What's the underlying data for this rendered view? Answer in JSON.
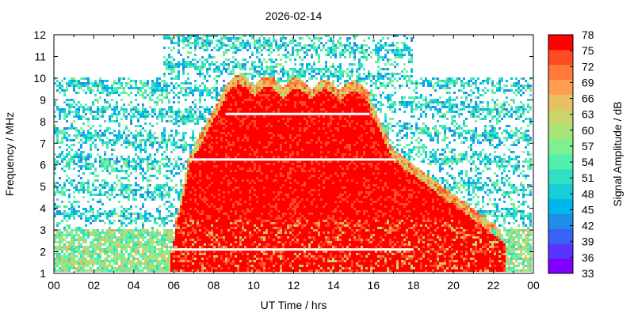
{
  "chart_data": {
    "type": "heatmap",
    "title": "2026-02-14",
    "xlabel": "UT Time / hrs",
    "ylabel": "Frequency / MHz",
    "colorbar_label": "Signal Amplitude / dB",
    "xlim": [
      0,
      24
    ],
    "ylim": [
      1,
      12
    ],
    "x_ticks": [
      "00",
      "02",
      "04",
      "06",
      "08",
      "10",
      "12",
      "14",
      "16",
      "18",
      "20",
      "22",
      "00"
    ],
    "y_ticks": [
      "1",
      "2",
      "3",
      "4",
      "5",
      "6",
      "7",
      "8",
      "9",
      "10",
      "11",
      "12"
    ],
    "colorbar_ticks": [
      "33",
      "36",
      "39",
      "42",
      "45",
      "48",
      "51",
      "54",
      "57",
      "60",
      "63",
      "66",
      "69",
      "72",
      "75",
      "78"
    ],
    "colorbar_range": [
      33,
      78
    ],
    "colormap": [
      "#7f00ff",
      "#5a33fd",
      "#3a63f5",
      "#1f8ee9",
      "#00b5eb",
      "#19cdd6",
      "#33dfc3",
      "#52f0ad",
      "#7ff090",
      "#a7e47a",
      "#c9d46b",
      "#e8bf62",
      "#ff9e50",
      "#ff7a3a",
      "#ff4a22",
      "#ff0000"
    ],
    "events": [
      {
        "type": "intense_region",
        "start_hr": 5.8,
        "end_hr": 22.6,
        "peak_freq_mhz": 9.8,
        "level_db": 78
      },
      {
        "type": "band_horizontal_line",
        "freq_mhz": 8.35,
        "start_hr": 8.6,
        "end_hr": 15.8
      },
      {
        "type": "band_horizontal_line",
        "freq_mhz": 6.25,
        "start_hr": 6.8,
        "end_hr": 17.1
      },
      {
        "type": "band_horizontal_line",
        "freq_mhz": 2.1,
        "start_hr": 5.9,
        "end_hr": 18.0
      }
    ]
  }
}
